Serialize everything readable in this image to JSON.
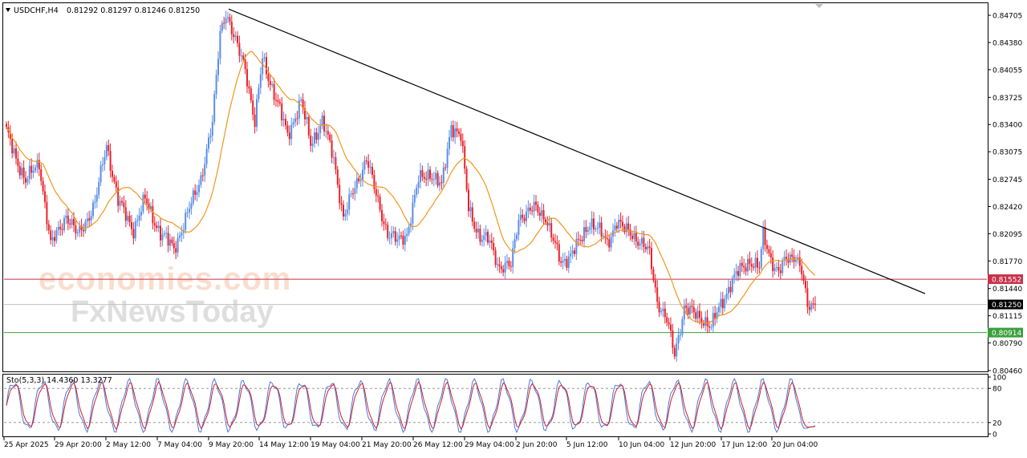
{
  "header": {
    "symbol": "USDCHF,H4",
    "ohlc": "0.81292 0.81297 0.81246 0.81250"
  },
  "watermark": {
    "brand1": "economies.com",
    "brand2": "FxNewsToday"
  },
  "indicator": {
    "label": "Sto(5,3,3) 14.4360 13.3277",
    "levels": [
      "100",
      "80",
      "20",
      "0"
    ]
  },
  "chart_data": {
    "type": "candlestick",
    "symbol": "USDCHF",
    "timeframe": "H4",
    "ylim": [
      0.8046,
      0.8484
    ],
    "y_ticks": [
      "0.84705",
      "0.84380",
      "0.84055",
      "0.83725",
      "0.83400",
      "0.83075",
      "0.82745",
      "0.82420",
      "0.82095",
      "0.81770",
      "0.81440",
      "0.81115",
      "0.80790",
      "0.80460"
    ],
    "x_ticks": [
      "25 Apr 2025",
      "29 Apr 20:00",
      "2 May 12:00",
      "7 May 04:00",
      "9 May 20:00",
      "14 May 12:00",
      "19 May 04:00",
      "21 May 20:00",
      "26 May 12:00",
      "29 May 04:00",
      "2 Jun 20:00",
      "5 Jun 12:00",
      "10 Jun 04:00",
      "12 Jun 20:00",
      "17 Jun 12:00",
      "20 Jun 04:00"
    ],
    "levels": {
      "resistance": "0.81552",
      "current": "0.81250",
      "support": "0.80914"
    },
    "colors": {
      "bull": "#5b8ee6",
      "bear": "#e8222b",
      "ma": "#f0961e",
      "trendline": "#000000",
      "resistance_line": "#c8324a",
      "support_line": "#3ca03c",
      "stoch_main": "#4a78e0",
      "stoch_signal": "#d0202a"
    },
    "anchors": [
      [
        0,
        0.833
      ],
      [
        10,
        0.8272
      ],
      [
        17,
        0.8295
      ],
      [
        23,
        0.8195
      ],
      [
        31,
        0.8232
      ],
      [
        37,
        0.8207
      ],
      [
        46,
        0.8245
      ],
      [
        52,
        0.8317
      ],
      [
        58,
        0.8248
      ],
      [
        66,
        0.8215
      ],
      [
        72,
        0.825
      ],
      [
        80,
        0.821
      ],
      [
        87,
        0.8192
      ],
      [
        94,
        0.8232
      ],
      [
        101,
        0.8277
      ],
      [
        107,
        0.834
      ],
      [
        111,
        0.8452
      ],
      [
        114,
        0.8475
      ],
      [
        118,
        0.8443
      ],
      [
        124,
        0.841
      ],
      [
        129,
        0.834
      ],
      [
        133,
        0.842
      ],
      [
        140,
        0.837
      ],
      [
        146,
        0.8328
      ],
      [
        153,
        0.8367
      ],
      [
        158,
        0.8318
      ],
      [
        164,
        0.8343
      ],
      [
        170,
        0.83
      ],
      [
        175,
        0.8228
      ],
      [
        181,
        0.8265
      ],
      [
        187,
        0.83
      ],
      [
        192,
        0.8255
      ],
      [
        198,
        0.821
      ],
      [
        203,
        0.82
      ],
      [
        208,
        0.821
      ],
      [
        214,
        0.8273
      ],
      [
        220,
        0.8283
      ],
      [
        226,
        0.8265
      ],
      [
        231,
        0.834
      ],
      [
        236,
        0.8325
      ],
      [
        240,
        0.824
      ],
      [
        246,
        0.8205
      ],
      [
        251,
        0.82
      ],
      [
        256,
        0.817
      ],
      [
        262,
        0.817
      ],
      [
        266,
        0.823
      ],
      [
        271,
        0.8235
      ],
      [
        275,
        0.824
      ],
      [
        280,
        0.823
      ],
      [
        284,
        0.82
      ],
      [
        288,
        0.8175
      ],
      [
        293,
        0.8185
      ],
      [
        298,
        0.82
      ],
      [
        303,
        0.8225
      ],
      [
        307,
        0.8215
      ],
      [
        312,
        0.8198
      ],
      [
        317,
        0.8225
      ],
      [
        320,
        0.8215
      ],
      [
        325,
        0.821
      ],
      [
        330,
        0.8197
      ],
      [
        334,
        0.8185
      ],
      [
        338,
        0.813
      ],
      [
        343,
        0.8105
      ],
      [
        347,
        0.8065
      ],
      [
        352,
        0.8122
      ],
      [
        357,
        0.8113
      ],
      [
        362,
        0.8108
      ],
      [
        366,
        0.8098
      ],
      [
        371,
        0.8125
      ],
      [
        376,
        0.815
      ],
      [
        380,
        0.8163
      ],
      [
        386,
        0.8178
      ],
      [
        391,
        0.8168
      ],
      [
        393,
        0.8207
      ],
      [
        397,
        0.818
      ],
      [
        401,
        0.8163
      ],
      [
        405,
        0.8178
      ],
      [
        410,
        0.8185
      ],
      [
        413,
        0.8165
      ],
      [
        416,
        0.812
      ],
      [
        418,
        0.8122
      ],
      [
        420,
        0.8125
      ]
    ],
    "candle_count": 421,
    "moving_average": {
      "period": 20
    },
    "trendline": {
      "from": [
        "9 May 20:00",
        0.8478
      ],
      "to": [
        "20 Jun 04:00",
        0.8138
      ]
    },
    "stochastic": {
      "params": "5,3,3",
      "main": 14.436,
      "signal": 13.3277,
      "ylim": [
        0,
        100
      ],
      "levels": [
        80,
        20
      ]
    }
  }
}
